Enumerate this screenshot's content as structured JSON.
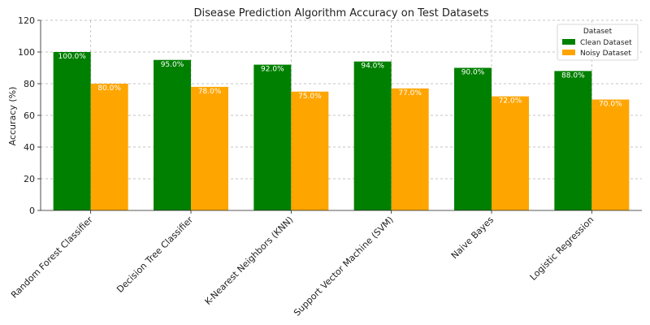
{
  "chart_data": {
    "type": "bar",
    "title": "Disease Prediction Algorithm Accuracy on Test Datasets",
    "xlabel": "",
    "ylabel": "Accuracy (%)",
    "ylim": [
      0,
      120
    ],
    "yticks": [
      0,
      20,
      40,
      60,
      80,
      100,
      120
    ],
    "grid": true,
    "categories": [
      "Random Forest Classifier",
      "Decision Tree Classifier",
      "K-Nearest Neighbors (KNN)",
      "Support Vector Machine (SVM)",
      "Naive Bayes",
      "Logistic Regression"
    ],
    "series": [
      {
        "name": "Clean Dataset",
        "color": "#008000",
        "values": [
          100,
          95,
          92,
          94,
          90,
          88
        ],
        "labels": [
          "100.0%",
          "95.0%",
          "92.0%",
          "94.0%",
          "90.0%",
          "88.0%"
        ]
      },
      {
        "name": "Noisy Dataset",
        "color": "#FFA500",
        "values": [
          80,
          78,
          75,
          77,
          72,
          70
        ],
        "labels": [
          "80.0%",
          "78.0%",
          "75.0%",
          "77.0%",
          "72.0%",
          "70.0%"
        ]
      }
    ],
    "legend": {
      "title": "Dataset",
      "position": "top-right"
    }
  }
}
